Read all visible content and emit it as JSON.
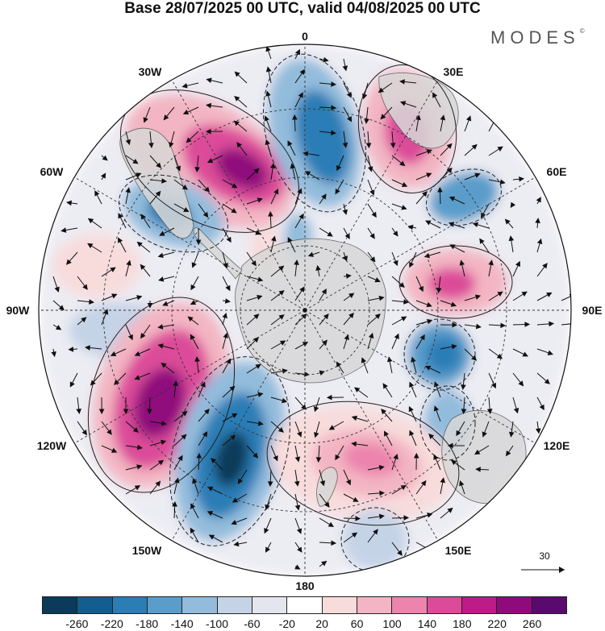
{
  "title": "Base 28/07/2025 00 UTC, valid 04/08/2025 00 UTC",
  "brand": "MODES",
  "brand_mark": "©",
  "longitude_labels": [
    "0",
    "30E",
    "60E",
    "90E",
    "120E",
    "150E",
    "180",
    "150W",
    "120W",
    "90W",
    "60W",
    "30W"
  ],
  "colorbar": {
    "ticks": [
      "-260",
      "-220",
      "-180",
      "-140",
      "-100",
      "-60",
      "-20",
      "20",
      "60",
      "100",
      "140",
      "180",
      "220",
      "260"
    ],
    "colors": [
      "#0b3a5a",
      "#135e8e",
      "#2b7db6",
      "#5a9dcb",
      "#93bcdc",
      "#c5d3e7",
      "#e5e5f0",
      "#ffffff",
      "#f8dcdc",
      "#f3b5c3",
      "#ec84ad",
      "#dc4b99",
      "#bd1b87",
      "#8f0b7c",
      "#5a0a6e"
    ]
  },
  "reference_vector": {
    "value": "30"
  },
  "colors": {
    "land": "#d8d8d8",
    "coast": "#555555",
    "grid": "#333333"
  }
}
